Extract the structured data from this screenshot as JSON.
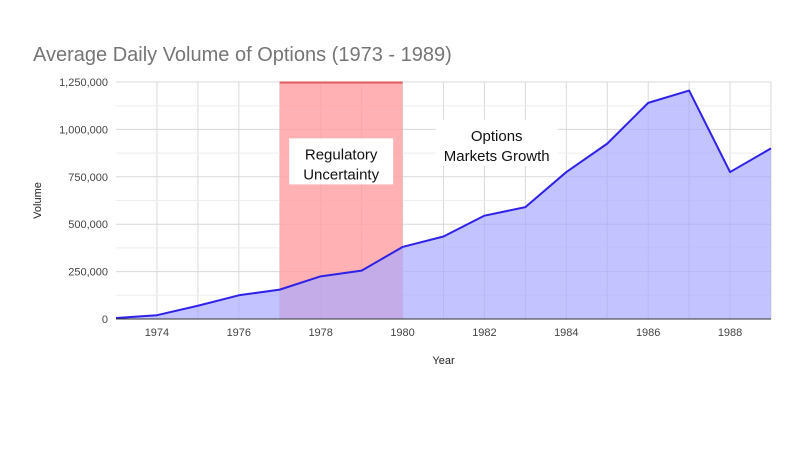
{
  "chart_data": {
    "type": "area",
    "title": "Average Daily Volume of Options (1973 - 1989)",
    "xlabel": "Year",
    "ylabel": "Volume",
    "xlim": [
      1973,
      1989
    ],
    "ylim": [
      0,
      1250000
    ],
    "x_ticks": [
      1974,
      1976,
      1978,
      1980,
      1982,
      1984,
      1986,
      1988
    ],
    "x_tick_labels": [
      "1974",
      "1976",
      "1978",
      "1980",
      "1982",
      "1984",
      "1986",
      "1988"
    ],
    "y_ticks": [
      0,
      250000,
      500000,
      750000,
      1000000,
      1250000
    ],
    "y_tick_labels": [
      "0",
      "250,000",
      "500,000",
      "750,000",
      "1,000,000",
      "1,250,000"
    ],
    "grid": true,
    "x": [
      1973,
      1974,
      1975,
      1976,
      1977,
      1978,
      1979,
      1980,
      1981,
      1982,
      1983,
      1984,
      1985,
      1986,
      1987,
      1988,
      1989
    ],
    "values": [
      5000,
      20000,
      70000,
      125000,
      155000,
      225000,
      255000,
      380000,
      435000,
      545000,
      590000,
      775000,
      925000,
      1140000,
      1205000,
      775000,
      900000
    ],
    "colors": {
      "line": "#2f22e6",
      "area": "#aaaaff",
      "band": "#ff9da0",
      "band_edge": "#e05b60",
      "grid": "#d9d9d9",
      "axis": "#333333"
    },
    "highlight_band": {
      "x_start": 1977,
      "x_end": 1980,
      "label": [
        "Regulatory",
        "Uncertainty"
      ]
    },
    "annotations": [
      {
        "text": [
          "Options",
          "Markets Growth"
        ],
        "x": 1982.3,
        "y": 850000
      }
    ]
  }
}
